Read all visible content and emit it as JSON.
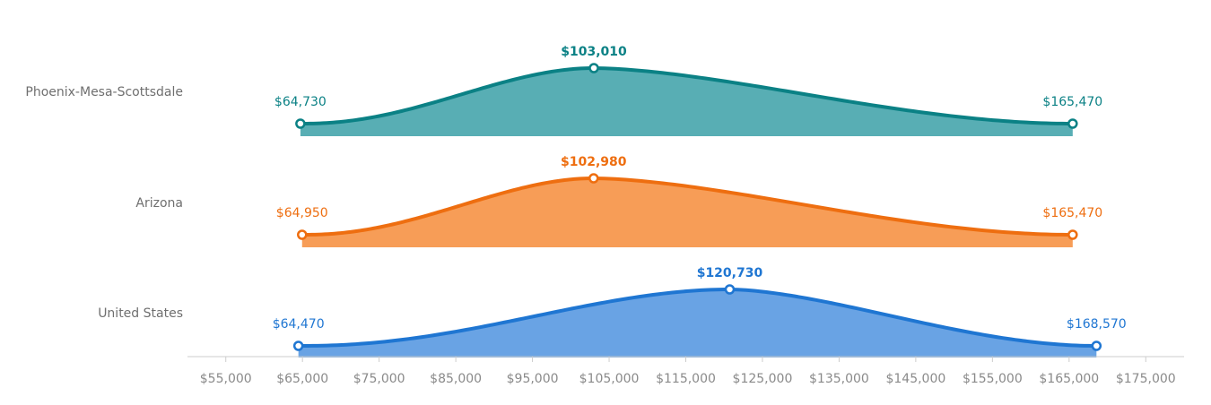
{
  "chart_data": {
    "type": "area",
    "title": "",
    "xlabel": "",
    "ylabel": "",
    "xlim": [
      50000,
      180000
    ],
    "x_ticks": [
      55000,
      65000,
      75000,
      85000,
      95000,
      105000,
      115000,
      125000,
      135000,
      145000,
      155000,
      165000,
      175000
    ],
    "x_tick_labels": [
      "$55,000",
      "$65,000",
      "$75,000",
      "$85,000",
      "$95,000",
      "$105,000",
      "$115,000",
      "$125,000",
      "$135,000",
      "$145,000",
      "$155,000",
      "$165,000",
      "$175,000"
    ],
    "grid": false,
    "legend": "none",
    "series": [
      {
        "name": "Phoenix-Mesa-Scottsdale",
        "line_color": "#0b8185",
        "fill_color": "#58aeb4",
        "min": 64730,
        "median": 103010,
        "max": 165470,
        "min_label": "$64,730",
        "median_label": "$103,010",
        "max_label": "$165,470"
      },
      {
        "name": "Arizona",
        "line_color": "#ee6e10",
        "fill_color": "#f79d57",
        "min": 64950,
        "median": 102980,
        "max": 165470,
        "min_label": "$64,950",
        "median_label": "$102,980",
        "max_label": "$165,470"
      },
      {
        "name": "United States",
        "line_color": "#1f76d2",
        "fill_color": "#69a3e4",
        "min": 64470,
        "median": 120730,
        "max": 168570,
        "min_label": "$64,470",
        "median_label": "$120,730",
        "max_label": "$168,570"
      }
    ]
  }
}
